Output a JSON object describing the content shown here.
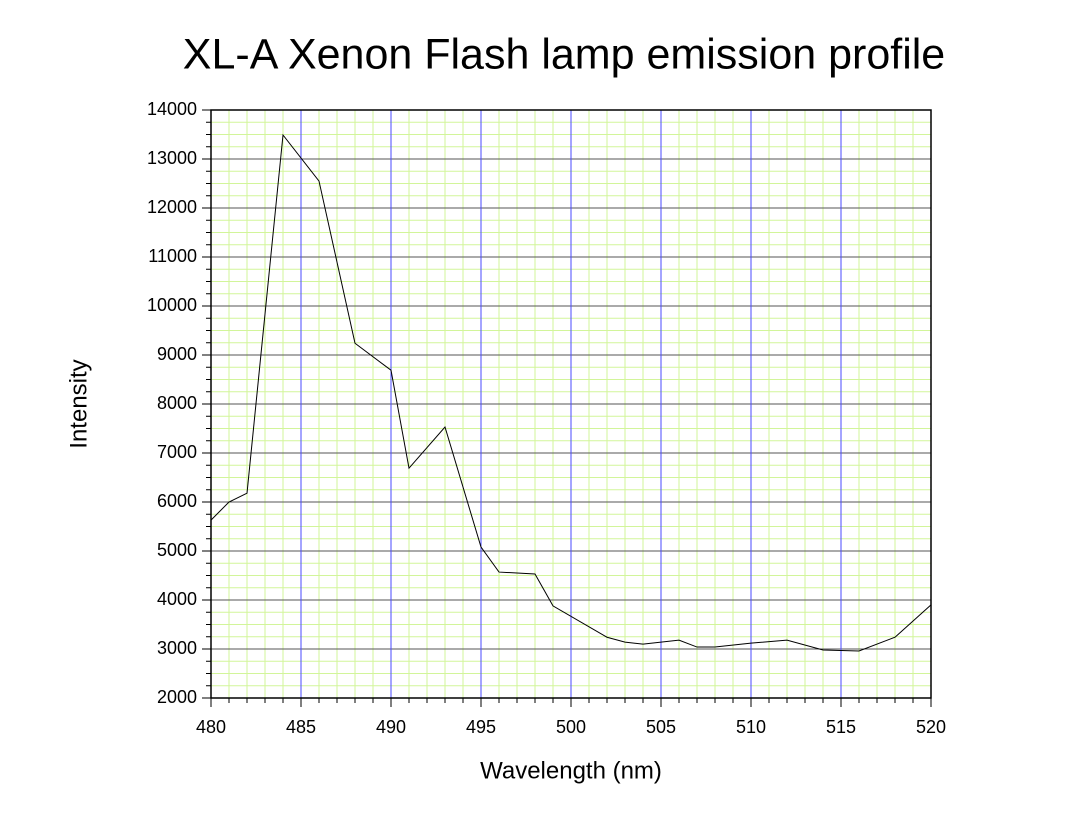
{
  "chart_data": {
    "type": "line",
    "title": "XL-A Xenon Flash lamp emission profile",
    "x_label": "Wavelength (nm)",
    "y_label": "Intensity",
    "x": [
      480,
      481,
      482,
      484,
      486,
      488,
      490,
      491,
      493,
      495,
      496,
      498,
      499,
      502,
      503,
      504,
      506,
      507,
      508,
      510,
      512,
      514,
      516,
      518,
      520
    ],
    "series": [
      {
        "color": "#000000",
        "values": [
          5630,
          6000,
          6180,
          13490,
          12550,
          9240,
          8690,
          6690,
          7530,
          5080,
          4570,
          4530,
          3880,
          3240,
          3140,
          3100,
          3180,
          3040,
          3040,
          3120,
          3180,
          2980,
          2960,
          3240,
          3900
        ]
      }
    ],
    "xlim": [
      480,
      520
    ],
    "ylim": [
      2000,
      14000
    ],
    "xticks": [
      480,
      485,
      490,
      495,
      500,
      505,
      510,
      515,
      520
    ],
    "yticks": [
      2000,
      3000,
      4000,
      5000,
      6000,
      7000,
      8000,
      9000,
      10000,
      11000,
      12000,
      13000,
      14000
    ],
    "x_minor_step": 1,
    "y_minor_step": 250,
    "grid": true,
    "x_grid_color": "#4a4aff",
    "y_grid_color": "#555555",
    "minor_grid_color": "#d2f59a"
  }
}
